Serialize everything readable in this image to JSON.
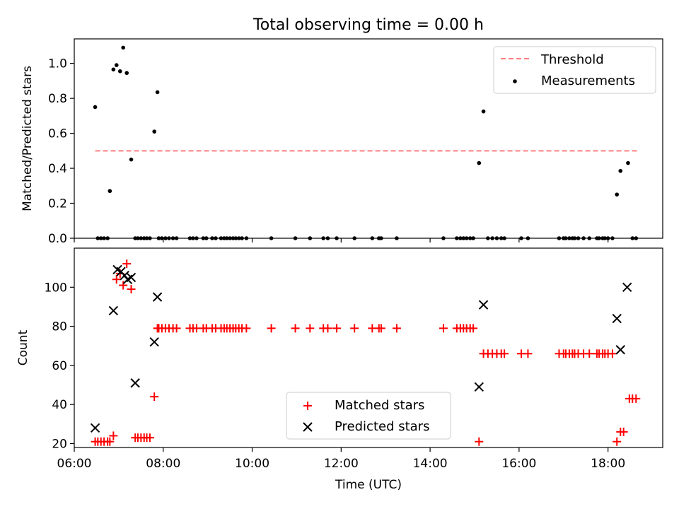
{
  "figure": {
    "title": "Total observing time = 0.00 h",
    "xlabel": "Time (UTC)"
  },
  "chart_data": [
    {
      "type": "scatter",
      "ylabel": "Matched/Predicted stars",
      "ylim": [
        0,
        1.14
      ],
      "yticks": [
        0.0,
        0.2,
        0.4,
        0.6,
        0.8,
        1.0
      ],
      "ytick_labels": [
        "0.0",
        "0.2",
        "0.4",
        "0.6",
        "0.8",
        "1.0"
      ],
      "xlim_hours": [
        6.0,
        19.23
      ],
      "legend": {
        "placement": "upper right",
        "entries": [
          "Threshold",
          "Measurements"
        ]
      },
      "threshold": {
        "name": "Threshold",
        "y": 0.5,
        "x_range_hours": [
          6.47,
          18.67
        ],
        "color": "#ff7f7f",
        "style": "dashed"
      },
      "series": [
        {
          "name": "Measurements",
          "color": "#000000",
          "marker": "dot",
          "x_hours": [
            6.47,
            6.53,
            6.6,
            6.67,
            6.75,
            6.8,
            6.88,
            6.95,
            7.03,
            7.1,
            7.18,
            7.28,
            7.37,
            7.43,
            7.5,
            7.57,
            7.63,
            7.7,
            7.8,
            7.87,
            7.9,
            7.97,
            8.05,
            8.13,
            8.22,
            8.3,
            8.6,
            8.67,
            8.75,
            8.9,
            8.97,
            9.1,
            9.18,
            9.3,
            9.37,
            9.43,
            9.5,
            9.57,
            9.63,
            9.7,
            9.77,
            9.87,
            10.43,
            10.97,
            11.3,
            11.6,
            11.7,
            11.9,
            12.3,
            12.7,
            12.85,
            12.9,
            13.25,
            14.3,
            14.6,
            14.68,
            14.75,
            14.82,
            14.9,
            14.97,
            15.1,
            15.2,
            15.3,
            15.4,
            15.5,
            15.6,
            15.67,
            16.05,
            16.2,
            16.9,
            17.0,
            17.05,
            17.13,
            17.2,
            17.25,
            17.33,
            17.45,
            17.58,
            17.75,
            17.8,
            17.88,
            17.93,
            18.0,
            18.1,
            18.2,
            18.28,
            18.45,
            18.55,
            18.63
          ],
          "y": [
            0.75,
            0,
            0,
            0,
            0,
            0.27,
            0.965,
            0.99,
            0.955,
            1.09,
            0.945,
            0.45,
            0,
            0,
            0,
            0,
            0,
            0,
            0.61,
            0.835,
            0,
            0,
            0,
            0,
            0,
            0,
            0,
            0,
            0,
            0,
            0,
            0,
            0,
            0,
            0,
            0,
            0,
            0,
            0,
            0,
            0,
            0,
            0,
            0,
            0,
            0,
            0,
            0,
            0,
            0,
            0,
            0,
            0,
            0,
            0,
            0,
            0,
            0,
            0,
            0,
            0.43,
            0.725,
            0,
            0,
            0,
            0,
            0,
            0,
            0,
            0,
            0,
            0,
            0,
            0,
            0,
            0,
            0,
            0,
            0,
            0,
            0,
            0,
            0,
            0,
            0.25,
            0.385,
            0.43,
            0,
            0
          ]
        }
      ]
    },
    {
      "type": "scatter",
      "ylabel": "Count",
      "ylim": [
        18,
        120
      ],
      "yticks": [
        20,
        40,
        60,
        80,
        100
      ],
      "ytick_labels": [
        "20",
        "40",
        "60",
        "80",
        "100"
      ],
      "xlim_hours": [
        6.0,
        19.23
      ],
      "xticks_hours": [
        6,
        8,
        10,
        12,
        14,
        16,
        18
      ],
      "xtick_labels": [
        "06:00",
        "08:00",
        "10:00",
        "12:00",
        "14:00",
        "16:00",
        "18:00"
      ],
      "legend": {
        "placement": "lower center",
        "entries": [
          "Matched stars",
          "Predicted stars"
        ]
      },
      "series": [
        {
          "name": "Matched stars",
          "color": "#ff0000",
          "marker": "plus",
          "x_hours": [
            6.47,
            6.53,
            6.6,
            6.67,
            6.75,
            6.8,
            6.88,
            6.95,
            7.03,
            7.1,
            7.18,
            7.28,
            7.37,
            7.43,
            7.5,
            7.57,
            7.63,
            7.7,
            7.8,
            7.87,
            7.9,
            7.97,
            8.05,
            8.13,
            8.22,
            8.3,
            8.6,
            8.67,
            8.75,
            8.9,
            8.97,
            9.1,
            9.18,
            9.3,
            9.37,
            9.43,
            9.5,
            9.57,
            9.63,
            9.7,
            9.77,
            9.87,
            10.43,
            10.97,
            11.3,
            11.6,
            11.7,
            11.9,
            12.3,
            12.7,
            12.85,
            12.9,
            13.25,
            14.3,
            14.6,
            14.68,
            14.75,
            14.82,
            14.9,
            14.97,
            15.1,
            15.2,
            15.3,
            15.4,
            15.5,
            15.6,
            15.67,
            16.05,
            16.2,
            16.9,
            17.0,
            17.05,
            17.13,
            17.2,
            17.25,
            17.33,
            17.45,
            17.58,
            17.75,
            17.8,
            17.88,
            17.93,
            18.0,
            18.1,
            18.2,
            18.28,
            18.35,
            18.48,
            18.55,
            18.63
          ],
          "y": [
            21,
            21,
            21,
            21,
            21,
            21,
            24,
            104,
            107,
            101,
            112,
            99,
            23,
            23,
            23,
            23,
            23,
            23,
            44,
            79,
            79,
            79,
            79,
            79,
            79,
            79,
            79,
            79,
            79,
            79,
            79,
            79,
            79,
            79,
            79,
            79,
            79,
            79,
            79,
            79,
            79,
            79,
            79,
            79,
            79,
            79,
            79,
            79,
            79,
            79,
            79,
            79,
            79,
            79,
            79,
            79,
            79,
            79,
            79,
            79,
            21,
            66,
            66,
            66,
            66,
            66,
            66,
            66,
            66,
            66,
            66,
            66,
            66,
            66,
            66,
            66,
            66,
            66,
            66,
            66,
            66,
            66,
            66,
            66,
            21,
            26,
            26,
            43,
            43,
            43
          ]
        },
        {
          "name": "Predicted stars",
          "color": "#000000",
          "marker": "x",
          "x_hours": [
            6.47,
            6.88,
            6.97,
            7.05,
            7.13,
            7.2,
            7.28,
            7.37,
            7.8,
            7.87,
            15.1,
            15.2,
            18.2,
            18.28,
            18.43
          ],
          "y": [
            28,
            88,
            109,
            108,
            106,
            104,
            105,
            51,
            72,
            95,
            49,
            91,
            84,
            68,
            100
          ]
        }
      ]
    }
  ]
}
